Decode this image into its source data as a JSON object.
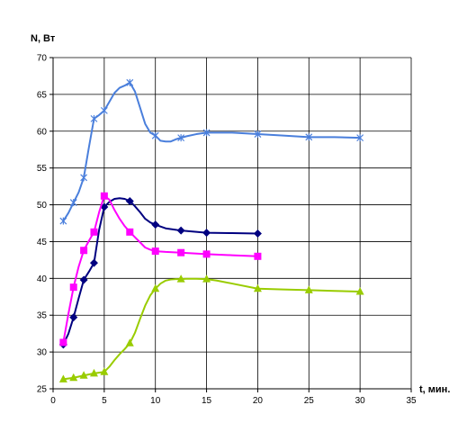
{
  "chart_data": {
    "type": "line",
    "title": "",
    "xlabel": "t, мин.",
    "ylabel": "N, Вт",
    "xlim": [
      0,
      35
    ],
    "ylim": [
      25,
      70
    ],
    "x_ticks": [
      0,
      5,
      10,
      15,
      20,
      25,
      30,
      35
    ],
    "y_ticks": [
      25,
      30,
      35,
      40,
      45,
      50,
      55,
      60,
      65,
      70
    ],
    "grid": "horizontal and vertical",
    "legend": "none",
    "series": [
      {
        "color": "#4a7fdc",
        "marker": "star",
        "x": [
          1,
          2,
          3,
          4,
          5,
          7.5,
          10,
          12.5,
          15,
          20,
          25,
          30
        ],
        "y": [
          47.8,
          50.3,
          53.7,
          61.7,
          62.8,
          66.6,
          59.4,
          59.1,
          59.8,
          59.6,
          59.2,
          59.1
        ],
        "curve_x": [
          1,
          1.5,
          2,
          2.5,
          3,
          3.5,
          4,
          4.5,
          5,
          5.5,
          6,
          6.5,
          7,
          7.5,
          8,
          8.5,
          9,
          9.5,
          10,
          10.5,
          11,
          11.5,
          12,
          12.5,
          13,
          14,
          15,
          17.5,
          20,
          22.5,
          25,
          27.5,
          30
        ],
        "curve_y": [
          47.8,
          48.9,
          50.3,
          51.7,
          53.7,
          57.8,
          61.7,
          62.2,
          62.8,
          64.0,
          65.2,
          65.9,
          66.2,
          66.6,
          65.4,
          63.2,
          61.0,
          59.8,
          59.4,
          58.7,
          58.6,
          58.6,
          58.9,
          59.1,
          59.3,
          59.6,
          59.8,
          59.8,
          59.6,
          59.4,
          59.2,
          59.2,
          59.1
        ]
      },
      {
        "color": "#000080",
        "marker": "diamond",
        "x": [
          1,
          2,
          3,
          4,
          5,
          7.5,
          10,
          12.5,
          15,
          20
        ],
        "y": [
          31.0,
          34.7,
          39.8,
          42.1,
          49.7,
          50.5,
          47.3,
          46.5,
          46.2,
          46.1
        ],
        "curve_x": [
          1,
          1.5,
          2,
          2.5,
          3,
          3.5,
          4,
          4.5,
          5,
          5.5,
          6,
          6.5,
          7,
          7.5,
          8,
          8.5,
          9,
          9.5,
          10,
          11,
          12.5,
          15,
          17.5,
          20
        ],
        "curve_y": [
          31.0,
          32.5,
          34.7,
          37.3,
          39.8,
          40.9,
          42.1,
          46.6,
          49.7,
          50.4,
          50.8,
          50.9,
          50.8,
          50.5,
          49.8,
          49.0,
          48.1,
          47.6,
          47.3,
          46.8,
          46.5,
          46.2,
          46.15,
          46.1
        ]
      },
      {
        "color": "#ff00ff",
        "marker": "square",
        "x": [
          1,
          2,
          3,
          4,
          5,
          7.5,
          10,
          12.5,
          15,
          20
        ],
        "y": [
          31.3,
          38.8,
          43.8,
          46.3,
          51.2,
          46.3,
          43.7,
          43.5,
          43.3,
          43.0
        ],
        "curve_x": [
          1,
          1.5,
          2,
          2.5,
          3,
          3.5,
          4,
          4.5,
          5,
          5.5,
          6,
          6.5,
          7,
          7.5,
          8,
          8.5,
          9,
          9.5,
          10,
          11,
          12.5,
          15,
          17.5,
          20
        ],
        "curve_y": [
          31.3,
          35.2,
          38.8,
          41.6,
          43.8,
          45.1,
          46.3,
          49.0,
          51.2,
          50.7,
          49.3,
          48.1,
          47.1,
          46.3,
          45.6,
          44.9,
          44.2,
          43.9,
          43.7,
          43.6,
          43.5,
          43.3,
          43.15,
          43.0
        ]
      },
      {
        "color": "#99cc00",
        "marker": "triangle",
        "x": [
          1,
          2,
          3,
          4,
          5,
          7.5,
          10,
          12.5,
          15,
          20,
          25,
          30
        ],
        "y": [
          26.3,
          26.5,
          26.8,
          27.1,
          27.3,
          31.2,
          38.6,
          39.9,
          39.9,
          38.6,
          38.4,
          38.2
        ],
        "curve_x": [
          1,
          2,
          3,
          4,
          5,
          5.5,
          6,
          6.5,
          7,
          7.5,
          8,
          8.5,
          9,
          9.5,
          10,
          10.5,
          11,
          11.5,
          12,
          12.5,
          13,
          14,
          15,
          16,
          17.5,
          20,
          22.5,
          25,
          27.5,
          30
        ],
        "curve_y": [
          26.3,
          26.5,
          26.8,
          27.1,
          27.3,
          28.0,
          28.9,
          29.7,
          30.4,
          31.2,
          32.6,
          34.5,
          36.3,
          37.7,
          38.6,
          39.3,
          39.7,
          39.85,
          39.9,
          39.9,
          39.95,
          39.95,
          39.9,
          39.7,
          39.3,
          38.6,
          38.5,
          38.4,
          38.3,
          38.2
        ]
      }
    ]
  }
}
